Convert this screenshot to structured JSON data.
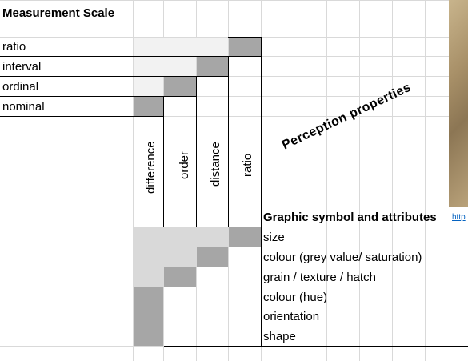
{
  "title": "Measurement Scale",
  "scales": [
    "ratio",
    "interval",
    "ordinal",
    "nominal"
  ],
  "properties": [
    "difference",
    "order",
    "distance",
    "ratio"
  ],
  "perception_heading": "Perception properties",
  "attributes_heading": "Graphic symbol and attributes",
  "attributes": [
    "size",
    "colour (grey value/ saturation)",
    "grain / texture / hatch",
    "colour (hue)",
    "orientation",
    "shape"
  ],
  "link_fragment": "http",
  "colors": {
    "dark_fill": "#a6a6a6",
    "light_fill": "#d9d9d9",
    "grid": "#d9d9d9",
    "link": "#0563c1"
  }
}
